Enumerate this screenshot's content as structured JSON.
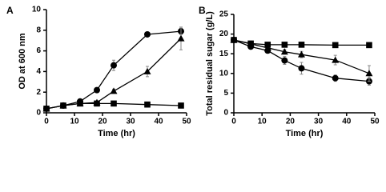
{
  "chart_data": [
    {
      "type": "line",
      "panel_label": "A",
      "x_label": "Time (hr)",
      "y_label": "OD at 600 nm",
      "x": [
        0,
        6,
        12,
        18,
        24,
        36,
        48
      ],
      "xlim": [
        0,
        50
      ],
      "xticks": [
        0,
        10,
        20,
        30,
        40,
        50
      ],
      "ylim": [
        0,
        10
      ],
      "yticks": [
        0,
        2,
        4,
        6,
        8,
        10
      ],
      "series": [
        {
          "marker": "circle",
          "color": "#000000",
          "values": [
            0.4,
            0.7,
            1.1,
            2.2,
            4.6,
            7.6,
            7.9
          ],
          "errors": [
            0.05,
            0.05,
            0.1,
            0.2,
            0.5,
            0.2,
            0.3
          ]
        },
        {
          "marker": "triangle",
          "color": "#000000",
          "values": [
            0.4,
            0.7,
            0.9,
            1.0,
            2.1,
            4.0,
            7.2
          ],
          "errors": [
            0.05,
            0.05,
            0.05,
            0.1,
            0.2,
            0.5,
            1.1
          ]
        },
        {
          "marker": "square",
          "color": "#000000",
          "values": [
            0.4,
            0.7,
            0.9,
            0.9,
            0.9,
            0.8,
            0.7
          ],
          "errors": [
            0.05,
            0.05,
            0.05,
            0.05,
            0.05,
            0.05,
            0.05
          ]
        }
      ]
    },
    {
      "type": "line",
      "panel_label": "B",
      "x_label": "Time (hr)",
      "y_label": "Total residual sugar (g/L)",
      "x": [
        0,
        6,
        12,
        18,
        24,
        36,
        48
      ],
      "xlim": [
        0,
        50
      ],
      "xticks": [
        0,
        10,
        20,
        30,
        40,
        50
      ],
      "ylim": [
        0,
        25
      ],
      "yticks": [
        0,
        5,
        10,
        15,
        20,
        25
      ],
      "series": [
        {
          "marker": "circle",
          "color": "#000000",
          "values": [
            18.5,
            16.8,
            15.8,
            13.3,
            11.3,
            8.8,
            8.0
          ],
          "errors": [
            0.3,
            0.4,
            0.6,
            1.0,
            1.5,
            0.8,
            1.0
          ]
        },
        {
          "marker": "triangle",
          "color": "#000000",
          "values": [
            18.5,
            17.5,
            16.5,
            15.5,
            14.8,
            13.4,
            10.0
          ],
          "errors": [
            0.3,
            0.3,
            0.4,
            0.6,
            0.8,
            1.2,
            2.0
          ]
        },
        {
          "marker": "square",
          "color": "#000000",
          "values": [
            18.5,
            17.6,
            17.3,
            17.3,
            17.3,
            17.2,
            17.2
          ],
          "errors": [
            0.3,
            0.3,
            0.3,
            0.3,
            0.3,
            0.3,
            0.3
          ]
        }
      ]
    }
  ]
}
